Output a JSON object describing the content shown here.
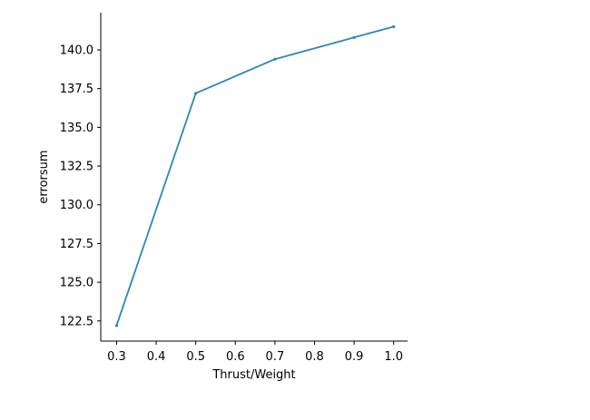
{
  "chart_data": {
    "type": "line",
    "title": "",
    "xlabel": "Thrust/Weight",
    "ylabel": "errorsum",
    "x": [
      0.3,
      0.5,
      0.7,
      0.9,
      1.0
    ],
    "series": [
      {
        "values": [
          122.2,
          137.2,
          139.4,
          140.8,
          141.5
        ]
      }
    ],
    "xlim": [
      0.26,
      1.035
    ],
    "ylim": [
      121.2,
      142.4
    ],
    "xticks": [
      "0.3",
      "0.4",
      "0.5",
      "0.6",
      "0.7",
      "0.8",
      "0.9",
      "1.0"
    ],
    "yticks": [
      "122.5",
      "125.0",
      "127.5",
      "130.0",
      "132.5",
      "135.0",
      "137.5",
      "140.0"
    ],
    "grid": false,
    "line_color": "#2e86b8"
  }
}
